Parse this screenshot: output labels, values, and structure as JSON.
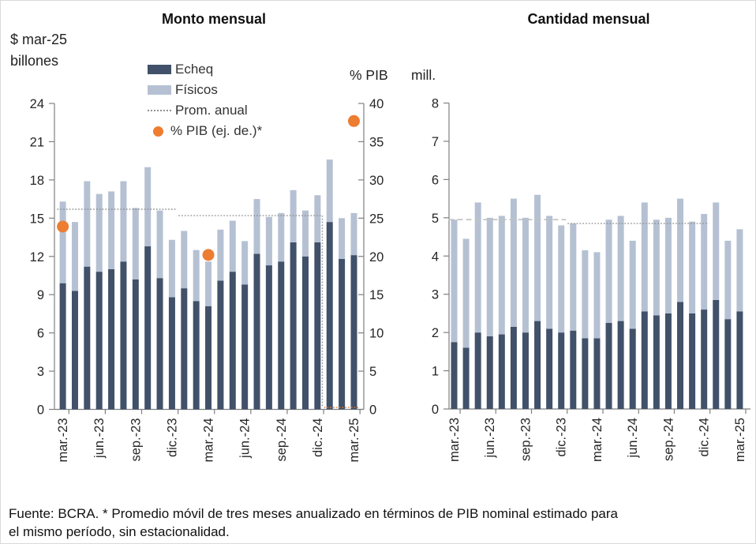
{
  "header": {
    "left_title": "Monto mensual",
    "right_title": "Cantidad mensual",
    "left_unit_line1": "$ mar-25",
    "left_unit_line2": "billones",
    "pib_axis_unit": "% PIB",
    "mill_axis_unit": "mill."
  },
  "legend": {
    "echeq": "Echeq",
    "fisicos": "Físicos",
    "prom_anual": "Prom. anual",
    "pib": "% PIB (ej. de.)*"
  },
  "colors": {
    "echeq": "#405169",
    "fisicos": "#b5c1d3",
    "pib_dot": "#ED7D31",
    "avg_dotted": "#8f8f8f",
    "avg_dashed": "#c0c0c0",
    "axis": "#808080"
  },
  "footer": {
    "line1": "Fuente: BCRA. * Promedio móvil de tres meses anualizado en términos de PIB nominal estimado para",
    "line2": "el mismo período, sin estacionalidad."
  },
  "chart_data": [
    {
      "type": "bar",
      "stacked": true,
      "title": "Monto mensual",
      "ylabel": "$ mar-25 billones",
      "ylim": [
        0,
        24
      ],
      "yticks": [
        0,
        3,
        6,
        9,
        12,
        15,
        18,
        21,
        24
      ],
      "y2label": "% PIB",
      "y2lim": [
        0,
        40
      ],
      "y2ticks": [
        0,
        5,
        10,
        15,
        20,
        25,
        30,
        35,
        40
      ],
      "categories": [
        "mar.-23",
        "abr.-23",
        "may.-23",
        "jun.-23",
        "jul.-23",
        "ago.-23",
        "sep.-23",
        "oct.-23",
        "nov.-23",
        "dic.-23",
        "ene.-24",
        "feb.-24",
        "mar.-24",
        "abr.-24",
        "may.-24",
        "jun.-24",
        "jul.-24",
        "ago.-24",
        "sep.-24",
        "oct.-24",
        "nov.-24",
        "dic.-24",
        "ene.-25",
        "feb.-25",
        "mar.-25"
      ],
      "x_tick_shown": [
        "mar.-23",
        "jun.-23",
        "sep.-23",
        "dic.-23",
        "mar.-24",
        "jun.-24",
        "sep.-24",
        "dic.-24",
        "mar.-25"
      ],
      "series": [
        {
          "name": "Echeq",
          "color": "#405169",
          "values": [
            9.9,
            9.3,
            11.2,
            10.8,
            11.0,
            11.6,
            10.2,
            12.8,
            10.3,
            8.8,
            9.5,
            8.5,
            8.1,
            10.1,
            10.8,
            9.8,
            12.2,
            11.3,
            11.6,
            13.1,
            12.0,
            13.1,
            14.7,
            11.8,
            12.1
          ]
        },
        {
          "name": "Físicos",
          "color": "#b5c1d3",
          "values": [
            6.4,
            5.4,
            6.7,
            6.1,
            6.1,
            6.3,
            5.6,
            6.2,
            5.3,
            4.5,
            4.5,
            4.0,
            3.5,
            4.0,
            4.0,
            3.4,
            4.3,
            3.8,
            3.8,
            4.1,
            3.6,
            3.7,
            4.9,
            3.2,
            3.3
          ]
        }
      ],
      "avg_line": {
        "label": "Prom. anual",
        "segments": [
          {
            "from": 0,
            "to": 9,
            "value": 15.7,
            "style": "dotted",
            "color": "#8f8f8f"
          },
          {
            "from": 10,
            "to": 21,
            "value": 15.2,
            "style": "dotted",
            "color": "#8f8f8f"
          },
          {
            "from": 22,
            "to": 24,
            "value": 0.15,
            "style": "dotted",
            "color": "#ED7D31"
          }
        ],
        "drop": {
          "at": 21.4,
          "from": 15.2,
          "to": 0.15
        }
      },
      "pib_dots": {
        "label": "% PIB (ej. de.)*",
        "color": "#ED7D31",
        "points": [
          {
            "month": "mar.-23",
            "index": 0,
            "value": 23.9
          },
          {
            "month": "mar.-24",
            "index": 12,
            "value": 20.2
          },
          {
            "month": "mar.-25",
            "index": 24,
            "value": 37.7
          }
        ]
      }
    },
    {
      "type": "bar",
      "stacked": true,
      "title": "Cantidad mensual",
      "ylabel": "mill.",
      "ylim": [
        0,
        8
      ],
      "yticks": [
        0,
        1,
        2,
        3,
        4,
        5,
        6,
        7,
        8
      ],
      "categories": [
        "mar.-23",
        "abr.-23",
        "may.-23",
        "jun.-23",
        "jul.-23",
        "ago.-23",
        "sep.-23",
        "oct.-23",
        "nov.-23",
        "dic.-23",
        "ene.-24",
        "feb.-24",
        "mar.-24",
        "abr.-24",
        "may.-24",
        "jun.-24",
        "jul.-24",
        "ago.-24",
        "sep.-24",
        "oct.-24",
        "nov.-24",
        "dic.-24",
        "ene.-25",
        "feb.-25",
        "mar.-25"
      ],
      "x_tick_shown": [
        "mar.-23",
        "jun.-23",
        "sep.-23",
        "dic.-23",
        "mar.-24",
        "jun.-24",
        "sep.-24",
        "dic.-24",
        "mar.-25"
      ],
      "series": [
        {
          "name": "Echeq",
          "color": "#405169",
          "values": [
            1.75,
            1.6,
            2.0,
            1.9,
            1.95,
            2.15,
            2.0,
            2.3,
            2.1,
            2.0,
            2.05,
            1.85,
            1.85,
            2.25,
            2.3,
            2.1,
            2.55,
            2.45,
            2.5,
            2.8,
            2.5,
            2.6,
            2.85,
            2.35,
            2.55
          ]
        },
        {
          "name": "Físicos",
          "color": "#b5c1d3",
          "values": [
            3.2,
            2.85,
            3.4,
            3.1,
            3.1,
            3.35,
            3.0,
            3.3,
            2.95,
            2.8,
            2.8,
            2.3,
            2.25,
            2.7,
            2.75,
            2.3,
            2.85,
            2.5,
            2.5,
            2.7,
            2.4,
            2.5,
            2.55,
            2.05,
            2.15
          ]
        }
      ],
      "avg_line": {
        "label": "Prom. anual",
        "segments": [
          {
            "from": 0,
            "to": 9,
            "value": 4.95,
            "style": "dashed",
            "color": "#c0c0c0"
          },
          {
            "from": 10,
            "to": 21,
            "value": 4.85,
            "style": "dotted",
            "color": "#8f8f8f"
          }
        ]
      }
    }
  ]
}
